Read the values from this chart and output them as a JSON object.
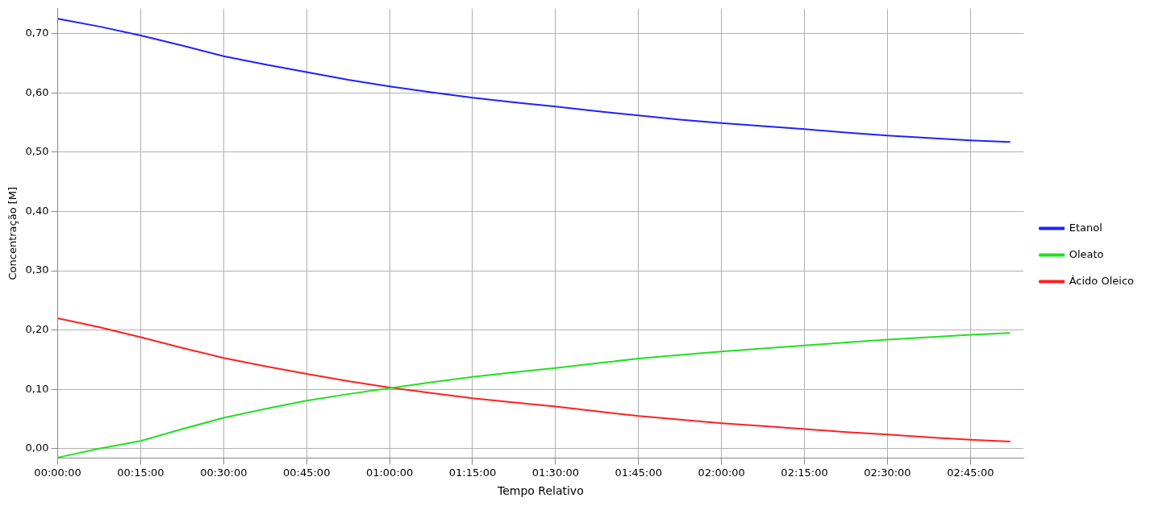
{
  "chart_data": {
    "type": "line",
    "xlabel": "Tempo Relativo",
    "ylabel": "Concentração [M]",
    "x": [
      0,
      0.125,
      0.25,
      0.375,
      0.5,
      0.625,
      0.75,
      0.875,
      1,
      1.125,
      1.25,
      1.375,
      1.5,
      1.625,
      1.75,
      1.875,
      2,
      2.125,
      2.25,
      2.375,
      2.5,
      2.625,
      2.75,
      2.87
    ],
    "series": [
      {
        "name": "Etanol",
        "color": "#2020ff",
        "values": [
          0.725,
          0.712,
          0.697,
          0.68,
          0.662,
          0.648,
          0.635,
          0.622,
          0.611,
          0.601,
          0.592,
          0.584,
          0.577,
          0.569,
          0.562,
          0.555,
          0.549,
          0.544,
          0.539,
          0.533,
          0.528,
          0.524,
          0.52,
          0.517
        ]
      },
      {
        "name": "Oleato",
        "color": "#20e020",
        "values": [
          -0.015,
          0.0,
          0.013,
          0.033,
          0.052,
          0.067,
          0.081,
          0.092,
          0.102,
          0.112,
          0.121,
          0.129,
          0.136,
          0.144,
          0.152,
          0.158,
          0.164,
          0.169,
          0.174,
          0.179,
          0.184,
          0.188,
          0.192,
          0.195
        ]
      },
      {
        "name": "Ácido Oleico",
        "color": "#ff2020",
        "values": [
          0.22,
          0.205,
          0.188,
          0.17,
          0.153,
          0.139,
          0.126,
          0.114,
          0.103,
          0.094,
          0.085,
          0.078,
          0.071,
          0.063,
          0.055,
          0.049,
          0.043,
          0.038,
          0.033,
          0.028,
          0.024,
          0.019,
          0.015,
          0.012
        ]
      }
    ],
    "xlim": [
      0,
      2.91
    ],
    "xticks": [
      {
        "value": 0,
        "label": "00:00:00"
      },
      {
        "value": 0.25,
        "label": "00:15:00"
      },
      {
        "value": 0.5,
        "label": "00:30:00"
      },
      {
        "value": 0.75,
        "label": "00:45:00"
      },
      {
        "value": 1,
        "label": "01:00:00"
      },
      {
        "value": 1.25,
        "label": "01:15:00"
      },
      {
        "value": 1.5,
        "label": "01:30:00"
      },
      {
        "value": 1.75,
        "label": "01:45:00"
      },
      {
        "value": 2,
        "label": "02:00:00"
      },
      {
        "value": 2.25,
        "label": "02:15:00"
      },
      {
        "value": 2.5,
        "label": "02:30:00"
      },
      {
        "value": 2.75,
        "label": "02:45:00"
      }
    ],
    "ylim": [
      -0.016,
      0.742
    ],
    "yticks": [
      {
        "value": 0,
        "label": "0,00"
      },
      {
        "value": 0.1,
        "label": "0,10"
      },
      {
        "value": 0.2,
        "label": "0,20"
      },
      {
        "value": 0.3,
        "label": "0,30"
      },
      {
        "value": 0.4,
        "label": "0,40"
      },
      {
        "value": 0.5,
        "label": "0,50"
      },
      {
        "value": 0.6,
        "label": "0,60"
      },
      {
        "value": 0.7,
        "label": "0,70"
      }
    ],
    "grid": true,
    "legend": "right",
    "marker": "none",
    "line_style": "solid"
  }
}
